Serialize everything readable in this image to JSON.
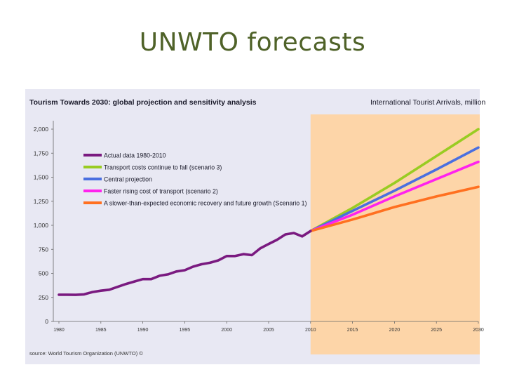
{
  "slide": {
    "title": "UNWTO forecasts"
  },
  "chart_data": {
    "type": "line",
    "title": "Tourism Towards 2030: global projection and sensitivity analysis",
    "subtitle": "International Tourist Arrivals, million",
    "source": "source: World Tourism Organization (UNWTO) ©",
    "xlabel": "",
    "ylabel": "",
    "xlim": [
      1980,
      2030
    ],
    "ylim": [
      0,
      2000
    ],
    "yticks": [
      0,
      250,
      500,
      750,
      1000,
      1250,
      1500,
      1750,
      2000
    ],
    "ytick_labels": [
      "0",
      "250",
      "500",
      "750",
      "1,000",
      "1,250",
      "1,500",
      "1,750",
      "2,000"
    ],
    "xticks": [
      1980,
      1985,
      1990,
      1995,
      2000,
      2005,
      2010,
      2015,
      2020,
      2025,
      2030
    ],
    "xtick_labels": [
      "1980",
      "1985",
      "1990",
      "1995",
      "2000",
      "2005",
      "2010",
      "2015",
      "2020",
      "2025",
      "2030"
    ],
    "projection_region": [
      2010,
      2030
    ],
    "colors": {
      "panel": "#e8e8f3",
      "projection": "#fdd5a8",
      "actual": "#7a1a80",
      "scenario3": "#99cc22",
      "central": "#4a6fe0",
      "scenario2": "#ff22ee",
      "scenario1": "#ff7020"
    },
    "series": [
      {
        "name": "Actual data 1980-2010",
        "color_key": "actual",
        "x": [
          1980,
          1981,
          1982,
          1983,
          1984,
          1985,
          1986,
          1987,
          1988,
          1989,
          1990,
          1991,
          1992,
          1993,
          1994,
          1995,
          1996,
          1997,
          1998,
          1999,
          2000,
          2001,
          2002,
          2003,
          2004,
          2005,
          2006,
          2007,
          2008,
          2009,
          2010
        ],
        "values": [
          278,
          278,
          277,
          282,
          306,
          320,
          330,
          360,
          390,
          415,
          440,
          440,
          475,
          490,
          520,
          533,
          570,
          595,
          610,
          635,
          680,
          680,
          700,
          690,
          760,
          806,
          850,
          905,
          920,
          885,
          940
        ]
      },
      {
        "name": "Transport costs continue to fall (scenario 3)",
        "color_key": "scenario3",
        "x": [
          2010,
          2015,
          2020,
          2025,
          2030
        ],
        "values": [
          940,
          1180,
          1440,
          1720,
          2000
        ]
      },
      {
        "name": "Central projection",
        "color_key": "central",
        "x": [
          2010,
          2015,
          2020,
          2025,
          2030
        ],
        "values": [
          940,
          1150,
          1360,
          1580,
          1809
        ]
      },
      {
        "name": "Faster rising cost of transport (scenario 2)",
        "color_key": "scenario2",
        "x": [
          2010,
          2015,
          2020,
          2025,
          2030
        ],
        "values": [
          940,
          1110,
          1300,
          1480,
          1660
        ]
      },
      {
        "name": "A slower-than-expected economic recovery and future growth (Scenario 1)",
        "color_key": "scenario1",
        "x": [
          2010,
          2015,
          2020,
          2025,
          2030
        ],
        "values": [
          940,
          1060,
          1190,
          1300,
          1400
        ]
      }
    ],
    "legend_position": "top-left"
  }
}
